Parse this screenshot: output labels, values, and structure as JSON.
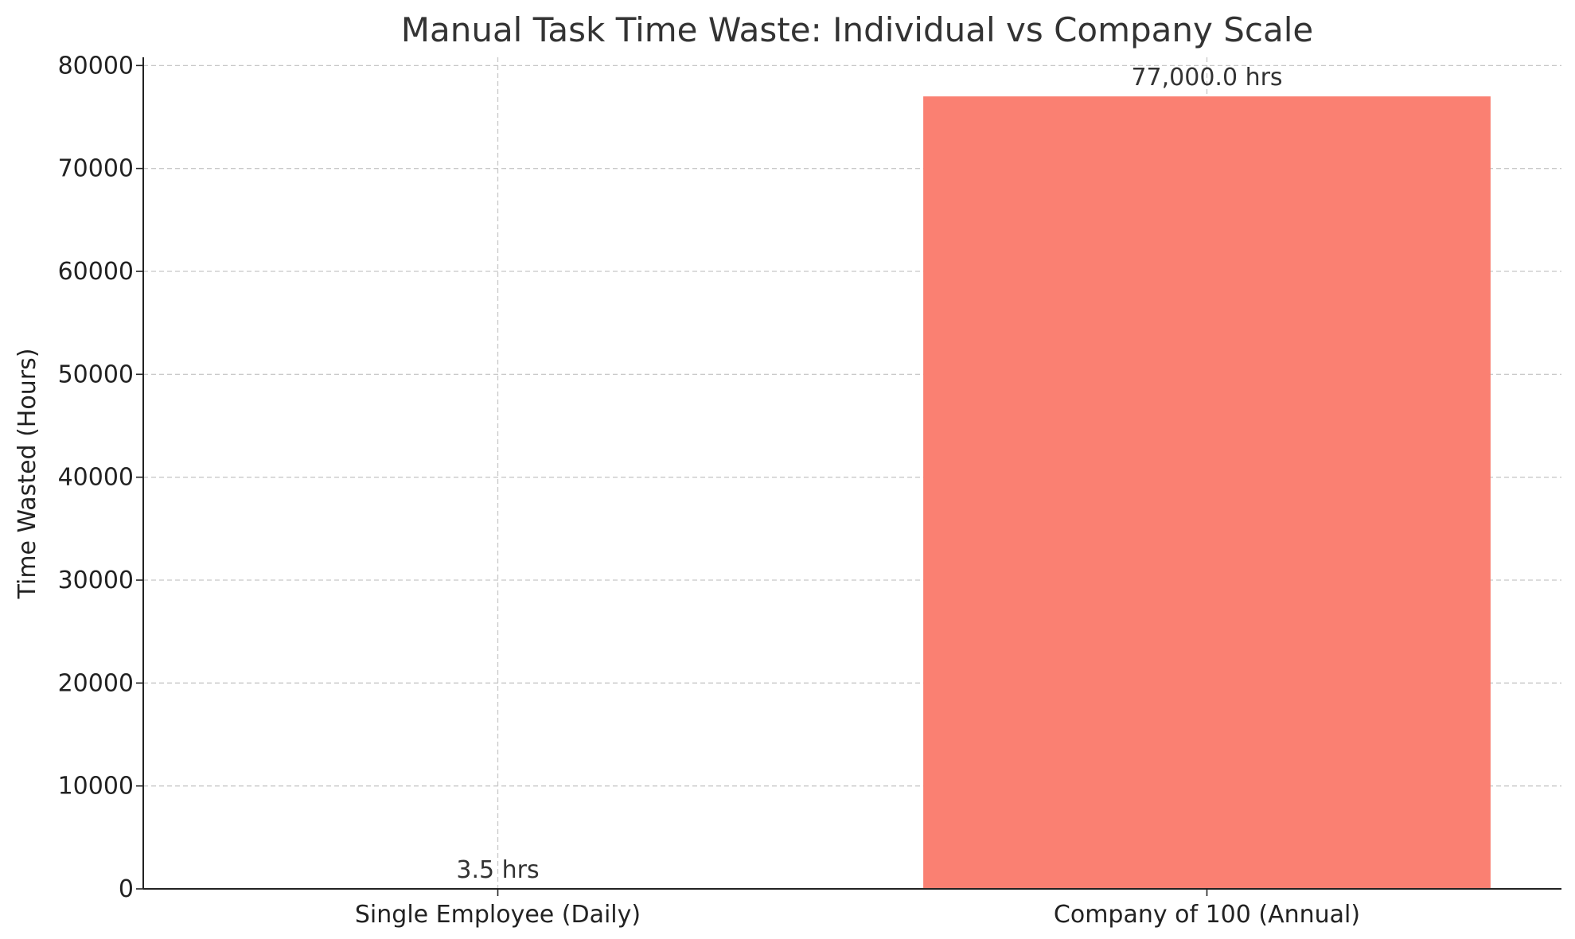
{
  "chart_data": {
    "type": "bar",
    "title": "Manual Task Time Waste: Individual vs Company Scale",
    "xlabel": "",
    "ylabel": "Time Wasted (Hours)",
    "categories": [
      "Single Employee (Daily)",
      "Company of 100 (Annual)"
    ],
    "values": [
      3.5,
      77000
    ],
    "data_labels": [
      "3.5 hrs",
      "77,000.0 hrs"
    ],
    "bar_colors": [
      "#87ceeb",
      "#fa8072"
    ],
    "ylim": [
      0,
      80800
    ],
    "yticks": [
      0,
      10000,
      20000,
      30000,
      40000,
      50000,
      60000,
      70000,
      80000
    ],
    "ytick_labels": [
      "0",
      "10000",
      "20000",
      "30000",
      "40000",
      "50000",
      "60000",
      "70000",
      "80000"
    ],
    "grid": true,
    "legend": "none"
  }
}
